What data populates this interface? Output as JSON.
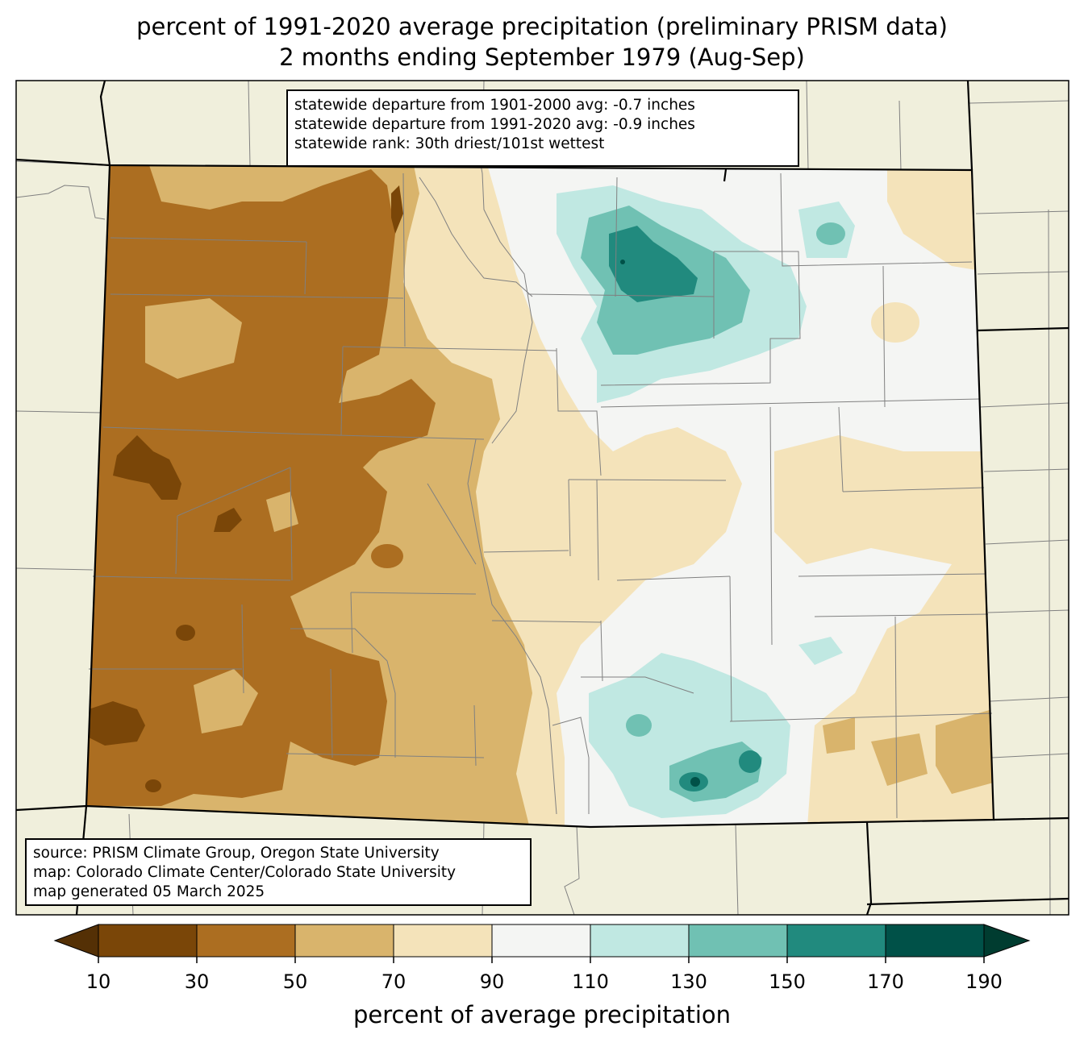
{
  "title_line1": "percent of 1991-2020 average precipitation (preliminary PRISM data)",
  "title_line2": "2 months ending September 1979 (Aug-Sep)",
  "stats": {
    "line1": "statewide departure from 1901-2000 avg: -0.7 inches",
    "line2": "statewide departure from 1991-2020 avg: -0.9 inches",
    "line3": "statewide rank: 30th driest/101st wettest"
  },
  "credits": {
    "line1": "source: PRISM Climate Group, Oregon State University",
    "line2": "map: Colorado Climate Center/Colorado State University",
    "line3": "map generated 05 March 2025"
  },
  "colorbar": {
    "label": "percent of average precipitation",
    "ticks": [
      "10",
      "30",
      "50",
      "70",
      "90",
      "110",
      "130",
      "150",
      "170",
      "190"
    ],
    "colors": {
      "under": "#543005",
      "c10_30": "#7a4608",
      "c30_50": "#ac6e21",
      "c50_70": "#d9b46c",
      "c70_90": "#f4e3ba",
      "c90_110": "#f4f5f3",
      "c110_130": "#c0e8e2",
      "c130_150": "#70c1b3",
      "c150_170": "#218a7e",
      "c170_190": "#005148",
      "over": "#003c30"
    }
  },
  "map_colors": {
    "background": "#f0efdc",
    "county_lines": "#808080",
    "state_lines": "#000000"
  }
}
